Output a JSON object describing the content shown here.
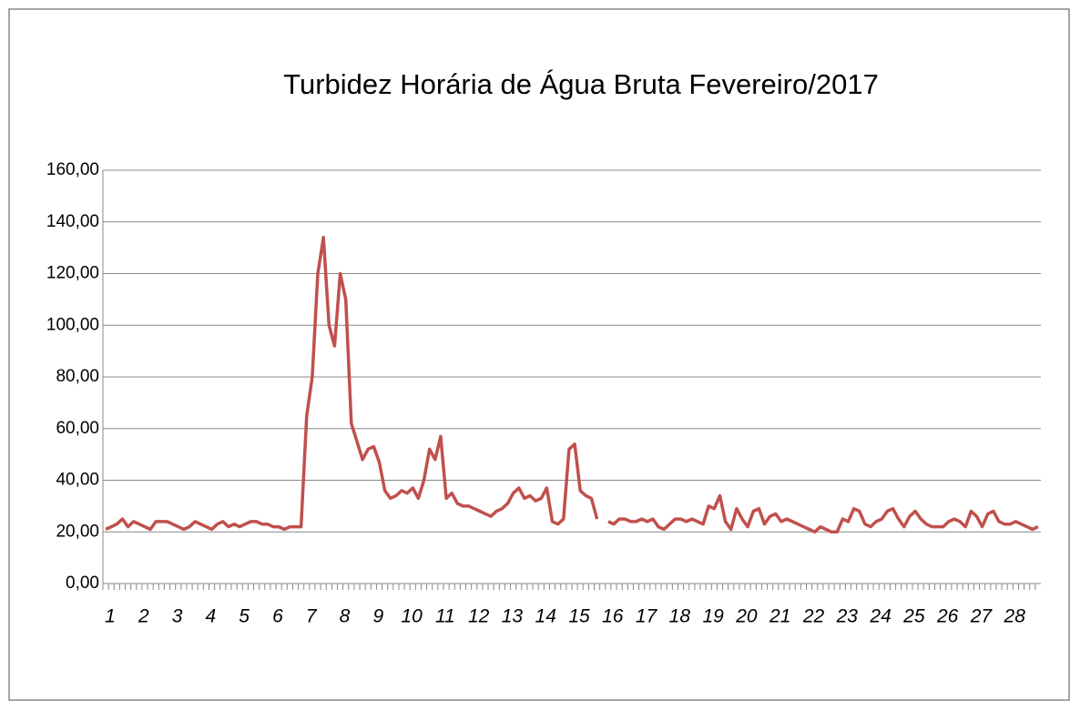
{
  "chart_data": {
    "type": "line",
    "title": "Turbidez Horária de Água Bruta Fevereiro/2017",
    "categories": [
      "1",
      null,
      null,
      null,
      null,
      null,
      "2",
      null,
      null,
      null,
      null,
      null,
      "3",
      null,
      null,
      null,
      null,
      null,
      "4",
      null,
      null,
      null,
      null,
      null,
      "5",
      null,
      null,
      null,
      null,
      null,
      "6",
      null,
      null,
      null,
      null,
      null,
      "7",
      null,
      null,
      null,
      null,
      null,
      "8",
      null,
      null,
      null,
      null,
      null,
      "9",
      null,
      null,
      null,
      null,
      null,
      "10",
      null,
      null,
      null,
      null,
      null,
      "11",
      null,
      null,
      null,
      null,
      null,
      "12",
      null,
      null,
      null,
      null,
      null,
      "13",
      null,
      null,
      null,
      null,
      null,
      "14",
      null,
      null,
      null,
      null,
      null,
      "15",
      null,
      null,
      null,
      null,
      null,
      "16",
      null,
      null,
      null,
      null,
      null,
      "17",
      null,
      null,
      null,
      null,
      null,
      "18",
      null,
      null,
      null,
      null,
      null,
      "19",
      null,
      null,
      null,
      null,
      null,
      "20",
      null,
      null,
      null,
      null,
      null,
      "21",
      null,
      null,
      null,
      null,
      null,
      "22",
      null,
      null,
      null,
      null,
      null,
      "23",
      null,
      null,
      null,
      null,
      null,
      "24",
      null,
      null,
      null,
      null,
      null,
      "25",
      null,
      null,
      null,
      null,
      null,
      "26",
      null,
      null,
      null,
      null,
      null,
      "27",
      null,
      null,
      null,
      null,
      null,
      "28",
      null,
      null,
      null,
      null,
      null
    ],
    "values": [
      21,
      22,
      23,
      25,
      22,
      24,
      23,
      22,
      21,
      24,
      24,
      24,
      23,
      22,
      21,
      22,
      24,
      23,
      22,
      21,
      23,
      24,
      22,
      23,
      22,
      23,
      24,
      24,
      23,
      23,
      22,
      22,
      21,
      22,
      22,
      22,
      65,
      80,
      120,
      134,
      100,
      92,
      120,
      110,
      62,
      55,
      48,
      52,
      53,
      47,
      36,
      33,
      34,
      36,
      35,
      37,
      33,
      40,
      52,
      48,
      57,
      33,
      35,
      31,
      30,
      30,
      29,
      28,
      27,
      26,
      28,
      29,
      31,
      35,
      37,
      33,
      34,
      32,
      33,
      37,
      24,
      23,
      25,
      52,
      54,
      36,
      34,
      33,
      25,
      null,
      24,
      23,
      25,
      25,
      24,
      24,
      25,
      24,
      25,
      22,
      21,
      23,
      25,
      25,
      24,
      25,
      24,
      23,
      30,
      29,
      34,
      24,
      21,
      29,
      25,
      22,
      28,
      29,
      23,
      26,
      27,
      24,
      25,
      24,
      23,
      22,
      21,
      20,
      22,
      21,
      20,
      20,
      25,
      24,
      29,
      28,
      23,
      22,
      24,
      25,
      28,
      29,
      25,
      22,
      26,
      28,
      25,
      23,
      22,
      22,
      22,
      24,
      25,
      24,
      22,
      28,
      26,
      22,
      27,
      28,
      24,
      23,
      23,
      24,
      23,
      22,
      21,
      22
    ],
    "color": "#c0504d",
    "ylim": [
      0,
      160
    ],
    "yticks": [
      {
        "value": 0,
        "label": "0,00"
      },
      {
        "value": 20,
        "label": "20,00"
      },
      {
        "value": 40,
        "label": "40,00"
      },
      {
        "value": 60,
        "label": "60,00"
      },
      {
        "value": 80,
        "label": "80,00"
      },
      {
        "value": 100,
        "label": "100,00"
      },
      {
        "value": 120,
        "label": "120,00"
      },
      {
        "value": 140,
        "label": "140,00"
      },
      {
        "value": 160,
        "label": "160,00"
      }
    ],
    "grid": true
  }
}
